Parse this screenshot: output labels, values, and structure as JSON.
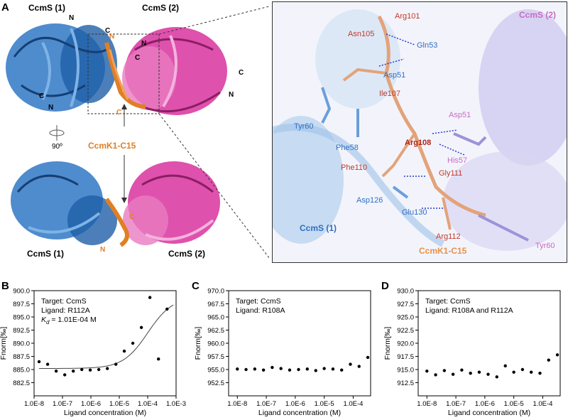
{
  "panels": {
    "a": "A",
    "b": "B",
    "c": "C",
    "d": "D"
  },
  "structure": {
    "top_left_1": "CcmS (1)",
    "top_left_2": "CcmS (2)",
    "bottom_left_1": "CcmS (1)",
    "bottom_left_2": "CcmS (2)",
    "peptide": "CcmK1-C15",
    "rotation": "90º",
    "termini": [
      "N",
      "C",
      "C",
      "N",
      "N",
      "C",
      "C",
      "N",
      "N",
      "C",
      "C",
      "N"
    ]
  },
  "zoom": {
    "title_right": "CcmS (2)",
    "ccms1": "CcmS (1)",
    "peptide": "CcmK1-C15",
    "residues": {
      "arg101": "Arg101",
      "asn105": "Asn105",
      "gln53": "Gln53",
      "asp51a": "Asp51",
      "ile107": "Ile107",
      "asp51b": "Asp51",
      "tyr60a": "Tyr60",
      "arg108": "Arg108",
      "phe58": "Phe58",
      "his57": "His57",
      "phe110": "Phe110",
      "gly111": "Gly111",
      "asp126": "Asp126",
      "glu130": "Glu130",
      "arg112": "Arg112",
      "tyr60b": "Tyr60"
    }
  },
  "colors": {
    "ccms1": "#2f78c4",
    "ccms2": "#d8339e",
    "peptide": "#e07f24",
    "pep_stick": "#e3a37a",
    "lav": "#b9b4e6"
  },
  "chart_data": [
    {
      "id": "B",
      "type": "scatter",
      "annotation": [
        "Target: CcmS",
        "Ligand: R112A",
        "K_d = 1.01E-04 M"
      ],
      "kd_prefix": "K",
      "kd_sub": "d",
      "kd_value": " = 1.01E-04 M",
      "xlabel": "Ligand concentration (M)",
      "ylabel": "Fnorm[‰]",
      "xscale": "log",
      "xlim": [
        1e-08,
        0.001
      ],
      "ylim": [
        880,
        900
      ],
      "xticks": [
        "1.0E-8",
        "1.0E-7",
        "1.0E-6",
        "1.0E-5",
        "1.0E-4",
        "1.0E-3"
      ],
      "yticks": [
        "882.5",
        "885.0",
        "887.5",
        "890.0",
        "892.5",
        "895.0",
        "897.5",
        "900.0"
      ],
      "x": [
        1.5e-08,
        3e-08,
        6e-08,
        1.2e-07,
        2.4e-07,
        4.8e-07,
        9.5e-07,
        1.9e-06,
        3.8e-06,
        7.6e-06,
        1.5e-05,
        3e-05,
        6e-05,
        0.00012,
        0.00024,
        0.00048
      ],
      "y": [
        886.5,
        886.0,
        884.7,
        884.0,
        884.7,
        885.0,
        884.9,
        885.0,
        885.2,
        886.0,
        888.5,
        890.0,
        893.0,
        898.7,
        887.0,
        896.5
      ],
      "fit": {
        "base": 885.2,
        "top": 898.8,
        "kd": 0.000101
      }
    },
    {
      "id": "C",
      "type": "scatter",
      "annotation": [
        "Target: CcmS",
        "Ligand: R108A"
      ],
      "xlabel": "Ligand concentration (M)",
      "ylabel": "Fnorm[‰]",
      "xscale": "log",
      "xlim": [
        5e-09,
        0.0004
      ],
      "ylim": [
        950,
        970
      ],
      "xticks": [
        "1.0E-8",
        "1.0E-7",
        "1.0E-6",
        "1.0E-5",
        "1.0E-4"
      ],
      "yticks": [
        "952.5",
        "955.0",
        "957.5",
        "960.0",
        "962.5",
        "965.0",
        "967.5",
        "970.0"
      ],
      "x": [
        1e-08,
        2e-08,
        4e-08,
        8e-08,
        1.6e-07,
        3.2e-07,
        6.4e-07,
        1.3e-06,
        2.6e-06,
        5.1e-06,
        1e-05,
        2e-05,
        4e-05,
        8e-05,
        0.00016,
        0.00032
      ],
      "y": [
        955.1,
        955.0,
        955.1,
        954.9,
        955.4,
        955.2,
        954.9,
        955.0,
        955.1,
        954.8,
        955.2,
        955.1,
        954.9,
        956.0,
        955.6,
        957.3
      ]
    },
    {
      "id": "D",
      "type": "scatter",
      "annotation": [
        "Target: CcmS",
        "Ligand: R108A and R112A"
      ],
      "xlabel": "Ligand concentration (M)",
      "ylabel": "Fnorm[‰]",
      "xscale": "log",
      "xlim": [
        5e-09,
        0.0004
      ],
      "ylim": [
        910,
        930
      ],
      "xticks": [
        "1.0E-8",
        "1.0E-7",
        "1.0E-6",
        "1.0E-5",
        "1.0E-4"
      ],
      "yticks": [
        "912.5",
        "915.0",
        "917.5",
        "920.0",
        "922.5",
        "925.0",
        "927.5",
        "930.0"
      ],
      "x": [
        1e-08,
        2e-08,
        4e-08,
        8e-08,
        1.6e-07,
        3.2e-07,
        6.4e-07,
        1.3e-06,
        2.6e-06,
        5.1e-06,
        1e-05,
        2e-05,
        4e-05,
        8e-05,
        0.00016,
        0.00032
      ],
      "y": [
        914.7,
        914.0,
        914.8,
        914.1,
        914.9,
        914.3,
        914.5,
        914.1,
        913.6,
        915.7,
        914.5,
        915.0,
        914.5,
        914.3,
        916.8,
        917.8
      ]
    }
  ]
}
